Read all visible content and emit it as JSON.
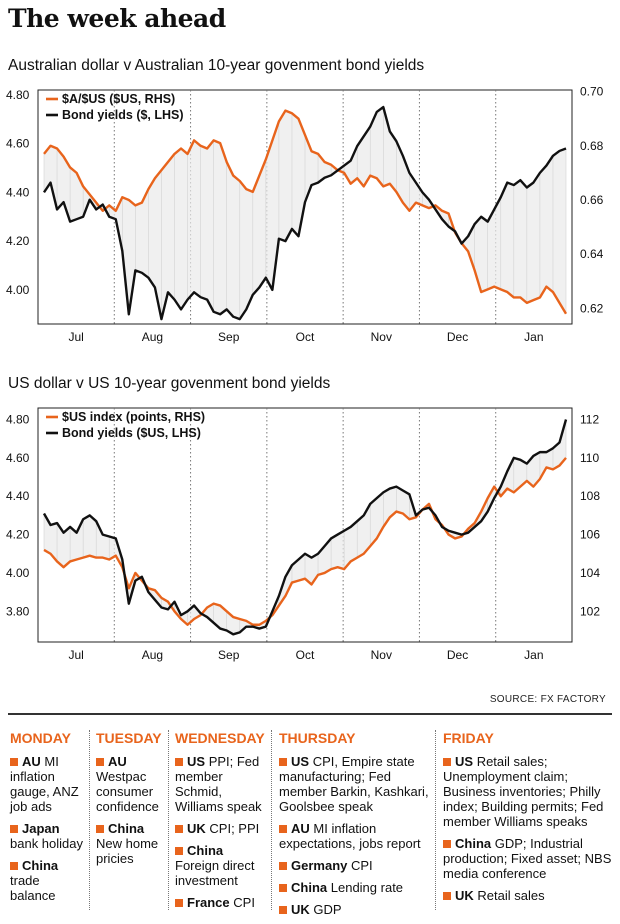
{
  "page_title": "The week ahead",
  "colors": {
    "orange": "#e8641c",
    "black": "#111111",
    "shade": "#e6e6e6"
  },
  "chart_data": [
    {
      "type": "line",
      "title": "Australian dollar v Australian 10-year govenment bond yields",
      "x_labels": [
        "Jul",
        "Aug",
        "Sep",
        "Oct",
        "Nov",
        "Dec",
        "Jan"
      ],
      "left_axis": {
        "ticks": [
          "4.80",
          "4.60",
          "4.40",
          "4.20",
          "4.00"
        ],
        "range": [
          3.86,
          4.82
        ]
      },
      "right_axis": {
        "ticks": [
          "0.70",
          "0.68",
          "0.66",
          "0.64",
          "0.62"
        ],
        "range": [
          0.6142,
          0.7006
        ]
      },
      "legend_placement": "top-left",
      "series": [
        {
          "name": "$A/$US ($US, RHS)",
          "axis": "right",
          "color": "#e8641c",
          "values": [
            0.677,
            0.68,
            0.679,
            0.676,
            0.672,
            0.67,
            0.665,
            0.662,
            0.659,
            0.656,
            0.658,
            0.656,
            0.661,
            0.66,
            0.658,
            0.659,
            0.664,
            0.668,
            0.671,
            0.674,
            0.677,
            0.679,
            0.677,
            0.682,
            0.68,
            0.679,
            0.682,
            0.681,
            0.674,
            0.669,
            0.667,
            0.664,
            0.663,
            0.669,
            0.675,
            0.682,
            0.689,
            0.693,
            0.692,
            0.69,
            0.684,
            0.678,
            0.677,
            0.674,
            0.673,
            0.671,
            0.67,
            0.666,
            0.668,
            0.665,
            0.669,
            0.668,
            0.665,
            0.666,
            0.663,
            0.659,
            0.656,
            0.659,
            0.658,
            0.657,
            0.658,
            0.656,
            0.655,
            0.648,
            0.644,
            0.641,
            0.634,
            0.626,
            0.627,
            0.628,
            0.627,
            0.626,
            0.624,
            0.624,
            0.622,
            0.623,
            0.624,
            0.628,
            0.626,
            0.622,
            0.618
          ]
        },
        {
          "name": "Bond yields ($, LHS)",
          "axis": "left",
          "color": "#111111",
          "values": [
            4.4,
            4.44,
            4.33,
            4.36,
            4.28,
            4.29,
            4.3,
            4.37,
            4.33,
            4.35,
            4.3,
            4.29,
            4.16,
            3.9,
            4.08,
            4.07,
            4.05,
            4.01,
            3.88,
            3.99,
            3.96,
            3.92,
            3.96,
            3.99,
            3.97,
            3.96,
            3.91,
            3.9,
            3.92,
            3.89,
            3.88,
            3.92,
            3.98,
            4.01,
            4.05,
            4.0,
            4.21,
            4.2,
            4.25,
            4.22,
            4.36,
            4.43,
            4.44,
            4.46,
            4.47,
            4.49,
            4.51,
            4.53,
            4.59,
            4.63,
            4.67,
            4.73,
            4.75,
            4.65,
            4.61,
            4.55,
            4.48,
            4.44,
            4.4,
            4.37,
            4.33,
            4.29,
            4.26,
            4.24,
            4.19,
            4.22,
            4.27,
            4.3,
            4.28,
            4.33,
            4.38,
            4.44,
            4.43,
            4.45,
            4.42,
            4.44,
            4.48,
            4.51,
            4.55,
            4.57,
            4.58
          ]
        }
      ]
    },
    {
      "type": "line",
      "title": "US dollar v US 10-year govenment bond yields",
      "x_labels": [
        "Jul",
        "Aug",
        "Sep",
        "Oct",
        "Nov",
        "Dec",
        "Jan"
      ],
      "left_axis": {
        "ticks": [
          "4.80",
          "4.60",
          "4.40",
          "4.20",
          "4.00",
          "3.80"
        ],
        "range": [
          3.64,
          4.86
        ]
      },
      "right_axis": {
        "ticks": [
          "112",
          "110",
          "108",
          "106",
          "104",
          "102"
        ],
        "range": [
          100.4,
          112.6
        ]
      },
      "legend_placement": "top-left",
      "series": [
        {
          "name": "$US index (points, RHS)",
          "axis": "right",
          "color": "#e8641c",
          "values": [
            105.2,
            105.0,
            104.6,
            104.3,
            104.6,
            104.7,
            104.8,
            104.9,
            104.8,
            104.8,
            104.7,
            104.9,
            104.3,
            103.2,
            104.0,
            103.6,
            103.2,
            103.1,
            102.7,
            102.5,
            102.0,
            101.6,
            101.3,
            101.6,
            101.8,
            102.2,
            102.4,
            102.3,
            102.0,
            101.7,
            101.6,
            101.5,
            101.3,
            101.3,
            101.5,
            101.8,
            102.3,
            102.8,
            103.5,
            103.6,
            103.7,
            103.4,
            103.9,
            104.0,
            104.2,
            104.3,
            104.2,
            104.6,
            104.8,
            105.0,
            105.4,
            105.8,
            106.4,
            106.9,
            107.2,
            107.1,
            106.8,
            106.9,
            107.3,
            107.6,
            106.8,
            106.5,
            106.0,
            105.8,
            105.9,
            106.3,
            106.6,
            107.2,
            107.9,
            108.5,
            108.0,
            108.4,
            108.2,
            108.5,
            108.8,
            108.5,
            108.9,
            109.5,
            109.4,
            109.6,
            110.0
          ]
        },
        {
          "name": "Bond yields ($US, LHS)",
          "axis": "left",
          "color": "#111111",
          "values": [
            4.31,
            4.25,
            4.26,
            4.21,
            4.24,
            4.21,
            4.28,
            4.3,
            4.27,
            4.2,
            4.19,
            4.18,
            4.07,
            3.84,
            3.96,
            3.98,
            3.9,
            3.86,
            3.82,
            3.81,
            3.85,
            3.78,
            3.8,
            3.83,
            3.79,
            3.77,
            3.74,
            3.71,
            3.7,
            3.68,
            3.69,
            3.72,
            3.72,
            3.71,
            3.72,
            3.8,
            3.88,
            3.98,
            4.04,
            4.07,
            4.1,
            4.08,
            4.1,
            4.14,
            4.18,
            4.2,
            4.22,
            4.24,
            4.27,
            4.3,
            4.36,
            4.39,
            4.42,
            4.44,
            4.45,
            4.43,
            4.41,
            4.3,
            4.33,
            4.34,
            4.3,
            4.24,
            4.22,
            4.21,
            4.2,
            4.21,
            4.24,
            4.27,
            4.32,
            4.39,
            4.45,
            4.53,
            4.6,
            4.59,
            4.57,
            4.61,
            4.63,
            4.63,
            4.65,
            4.68,
            4.8
          ]
        }
      ]
    }
  ],
  "source": "SOURCE: FX FACTORY",
  "calendar": {
    "monday": {
      "day": "MONDAY",
      "e1_country": "AU",
      "e1_text": "MI inflation gauge, ANZ job ads",
      "e2_country": "Japan",
      "e2_text": "bank holiday",
      "e3_country": "China",
      "e3_text": "trade balance"
    },
    "tuesday": {
      "day": "TUESDAY",
      "e1_country": "AU",
      "e1_text": "Westpac consumer confidence",
      "e2_country": "China",
      "e2_text": "New home pricies"
    },
    "wednesday": {
      "day": "WEDNESDAY",
      "e1_country": "US",
      "e1_text": "PPI; Fed member Schmid, Williams speak",
      "e2_country": "UK",
      "e2_text": "CPI; PPI",
      "e3_country": "China",
      "e3_text": "Foreign direct investment",
      "e4_country": "France",
      "e4_text": "CPI"
    },
    "thursday": {
      "day": "THURSDAY",
      "e1_country": "US",
      "e1_text": "CPI, Empire state manufacturing; Fed member Barkin, Kashkari, Goolsbee speak",
      "e2_country": "AU",
      "e2_text": "MI inflation expectations, jobs report",
      "e3_country": "Germany",
      "e3_text": "CPI",
      "e4_country": "China",
      "e4_text": "Lending rate",
      "e5_country": "UK",
      "e5_text": "GDP"
    },
    "friday": {
      "day": "FRIDAY",
      "e1_country": "US",
      "e1_text": "Retail sales; Unemployment claim; Business inventories; Philly index; Building permits; Fed member Williams speaks",
      "e2_country": "China",
      "e2_text": "GDP; Industrial production; Fixed asset; NBS media conference",
      "e3_country": "UK",
      "e3_text": "Retail sales"
    }
  }
}
